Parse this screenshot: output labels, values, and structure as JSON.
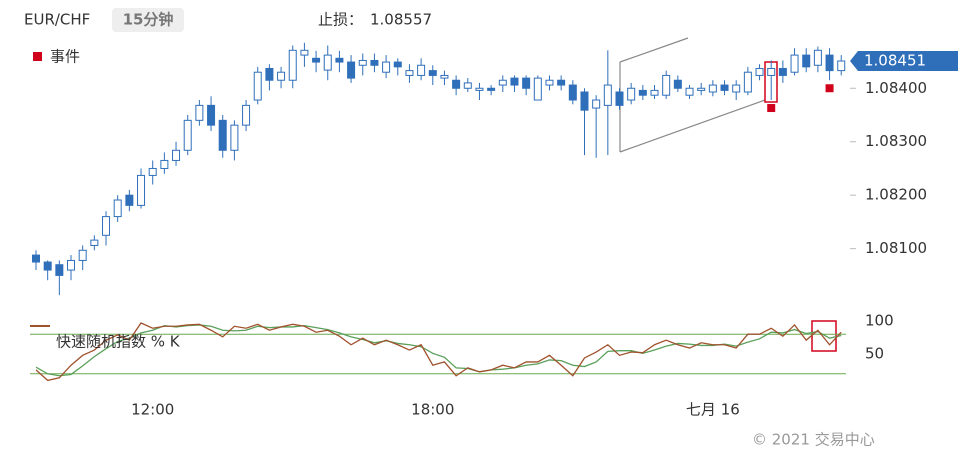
{
  "header": {
    "symbol": "EUR/CHF",
    "interval": "15分钟",
    "stop_loss_label": "止损：",
    "stop_loss": 1.08557
  },
  "footer": "© 2021 交易中心",
  "chart_data": [
    {
      "type": "candlestick",
      "categories": [
        null,
        null,
        null,
        null,
        null,
        null,
        null,
        null,
        null,
        null,
        "12:00",
        null,
        null,
        null,
        null,
        null,
        null,
        null,
        null,
        null,
        null,
        null,
        null,
        null,
        null,
        null,
        null,
        null,
        null,
        null,
        null,
        null,
        null,
        null,
        "18:00",
        null,
        null,
        null,
        null,
        null,
        null,
        null,
        null,
        null,
        null,
        null,
        null,
        null,
        null,
        null,
        null,
        null,
        null,
        null,
        null,
        null,
        null,
        null,
        "七月 16",
        null,
        null,
        null,
        null,
        null,
        null,
        null,
        null,
        null,
        null,
        null
      ],
      "open": [
        1.08088,
        1.08075,
        1.0807,
        1.0806,
        1.08078,
        1.08106,
        1.08125,
        1.0816,
        1.082,
        1.08181,
        1.08237,
        1.0825,
        1.08265,
        1.08284,
        1.0834,
        1.08368,
        1.0834,
        1.08284,
        1.08331,
        1.08378,
        1.08437,
        1.08415,
        1.08415,
        1.08462,
        1.08456,
        1.08434,
        1.08456,
        1.08449,
        1.08443,
        1.08452,
        1.0843,
        1.08449,
        1.08424,
        1.08424,
        1.08433,
        1.08419,
        1.08415,
        1.084,
        1.08396,
        1.084,
        1.08406,
        1.08419,
        1.08419,
        1.08378,
        1.08406,
        1.08415,
        1.08406,
        1.08393,
        1.08363,
        1.08368,
        1.08393,
        1.08378,
        1.08396,
        1.08387,
        1.08387,
        1.08415,
        1.08387,
        1.08396,
        1.08393,
        1.08406,
        1.08393,
        1.08393,
        1.08424,
        1.08424,
        1.08437,
        1.0843,
        1.08462,
        1.08443,
        1.08462,
        1.08433
      ],
      "high": [
        1.08097,
        1.08078,
        1.08078,
        1.08088,
        1.08106,
        1.08125,
        1.0817,
        1.082,
        1.0821,
        1.0825,
        1.08265,
        1.0828,
        1.083,
        1.0835,
        1.08378,
        1.08385,
        1.0835,
        1.0834,
        1.08378,
        1.0844,
        1.08445,
        1.0844,
        1.0848,
        1.08485,
        1.0847,
        1.0848,
        1.0847,
        1.08462,
        1.08465,
        1.08465,
        1.08462,
        1.08456,
        1.08445,
        1.08456,
        1.08443,
        1.08433,
        1.08424,
        1.08419,
        1.0841,
        1.08406,
        1.08424,
        1.08424,
        1.08424,
        1.08424,
        1.08424,
        1.08424,
        1.08415,
        1.084,
        1.08387,
        1.08471,
        1.084,
        1.0841,
        1.08406,
        1.08406,
        1.08433,
        1.08424,
        1.08406,
        1.0841,
        1.08415,
        1.08415,
        1.08415,
        1.0844,
        1.08445,
        1.08452,
        1.08452,
        1.08475,
        1.08475,
        1.08478,
        1.08475,
        1.08462
      ],
      "low": [
        1.0806,
        1.08041,
        1.08013,
        1.08041,
        1.0806,
        1.08097,
        1.08106,
        1.0815,
        1.0817,
        1.08175,
        1.0822,
        1.0824,
        1.08255,
        1.08275,
        1.0833,
        1.0832,
        1.0827,
        1.08265,
        1.0832,
        1.0837,
        1.08396,
        1.084,
        1.084,
        1.0844,
        1.0843,
        1.08415,
        1.0843,
        1.0841,
        1.08424,
        1.0843,
        1.08419,
        1.08424,
        1.0841,
        1.08415,
        1.08406,
        1.08406,
        1.08387,
        1.08393,
        1.08378,
        1.08387,
        1.08393,
        1.08393,
        1.08387,
        1.08378,
        1.08396,
        1.08396,
        1.0837,
        1.08275,
        1.0827,
        1.08275,
        1.0836,
        1.0837,
        1.08378,
        1.0838,
        1.0838,
        1.08393,
        1.0838,
        1.08387,
        1.08385,
        1.08387,
        1.08378,
        1.08387,
        1.08415,
        1.08378,
        1.0841,
        1.08424,
        1.0843,
        1.0843,
        1.08415,
        1.08424
      ],
      "close": [
        1.08075,
        1.0806,
        1.0805,
        1.08078,
        1.08097,
        1.08116,
        1.0816,
        1.08191,
        1.08181,
        1.08237,
        1.0825,
        1.08265,
        1.08284,
        1.0834,
        1.08368,
        1.08331,
        1.08284,
        1.08331,
        1.08368,
        1.0843,
        1.08415,
        1.0843,
        1.08471,
        1.08471,
        1.08449,
        1.08462,
        1.08449,
        1.08419,
        1.08452,
        1.08443,
        1.08449,
        1.0844,
        1.08433,
        1.08443,
        1.08424,
        1.08424,
        1.084,
        1.0841,
        1.084,
        1.08396,
        1.08415,
        1.08406,
        1.084,
        1.08419,
        1.08415,
        1.08406,
        1.08378,
        1.08359,
        1.08378,
        1.08406,
        1.08368,
        1.084,
        1.08387,
        1.08396,
        1.08424,
        1.084,
        1.084,
        1.084,
        1.08406,
        1.08396,
        1.08406,
        1.0843,
        1.08437,
        1.08437,
        1.08424,
        1.08462,
        1.0844,
        1.08471,
        1.08433,
        1.08451
      ],
      "color": "#2f6fba",
      "ylim": [
        1.08004,
        1.08494
      ],
      "yticks": [
        {
          "value": 1.081,
          "label": "1.08100"
        },
        {
          "value": 1.082,
          "label": "1.08200"
        },
        {
          "value": 1.083,
          "label": "1.08300"
        },
        {
          "value": 1.084,
          "label": "1.08400"
        }
      ],
      "events_label": "事件",
      "events": [
        63,
        68
      ],
      "event_color": "#d0021b"
    },
    {
      "type": "line",
      "series": [
        {
          "name": "快速随机指数 % K",
          "color": "#a0522d",
          "values": [
            26,
            10,
            14,
            33,
            48,
            56,
            71,
            79,
            71,
            97,
            89,
            92,
            92,
            94,
            95,
            86,
            76,
            92,
            89,
            95,
            86,
            91,
            95,
            92,
            83,
            86,
            77,
            64,
            74,
            64,
            71,
            64,
            56,
            64,
            33,
            38,
            17,
            29,
            23,
            26,
            33,
            29,
            38,
            38,
            48,
            33,
            17,
            44,
            53,
            64,
            48,
            53,
            52,
            64,
            71,
            64,
            59,
            67,
            64,
            64,
            59,
            80,
            80,
            89,
            77,
            94,
            71,
            86,
            64,
            83
          ]
        },
        {
          "color": "#5aa05a",
          "values": [
            30,
            20,
            17,
            19,
            32,
            46,
            58,
            69,
            74,
            82,
            86,
            93,
            91,
            93,
            94,
            92,
            86,
            85,
            86,
            92,
            90,
            91,
            91,
            93,
            90,
            87,
            82,
            76,
            72,
            67,
            70,
            66,
            64,
            61,
            51,
            45,
            29,
            28,
            23,
            26,
            27,
            29,
            33,
            35,
            41,
            40,
            33,
            31,
            38,
            54,
            55,
            55,
            51,
            56,
            62,
            66,
            65,
            63,
            63,
            65,
            62,
            68,
            73,
            83,
            82,
            87,
            81,
            84,
            74,
            78
          ]
        }
      ],
      "ylim": [
        0,
        100
      ],
      "yticks": [
        50,
        100
      ],
      "levels": [
        20,
        80
      ],
      "level_color": "#6aa84f"
    }
  ]
}
